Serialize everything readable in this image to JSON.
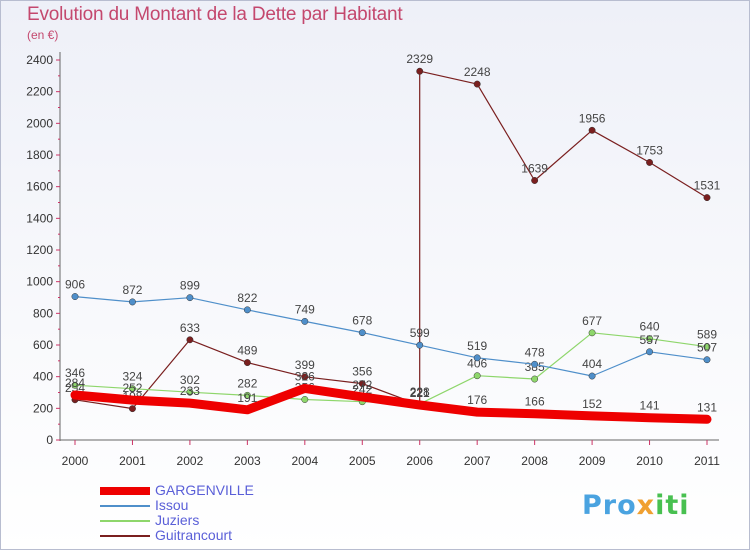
{
  "title": "Evolution du Montant de la Dette par Habitant",
  "subtitle": "(en €)",
  "brand": {
    "part1": "Pro",
    "part2": "x",
    "part3": "iti"
  },
  "chart_data": {
    "type": "line",
    "title": "Evolution du Montant de la Dette par Habitant",
    "subtitle": "(en €)",
    "categories": [
      "2000",
      "2001",
      "2002",
      "2003",
      "2004",
      "2005",
      "2006",
      "2007",
      "2008",
      "2009",
      "2010",
      "2011"
    ],
    "ylim": [
      0,
      2400
    ],
    "yticks": [
      0,
      200,
      400,
      600,
      800,
      1000,
      1200,
      1400,
      1600,
      1800,
      2000,
      2200,
      2400
    ],
    "grid": false,
    "legend_position": "bottom-left",
    "series": [
      {
        "name": "Guitrancourt",
        "color": "#7a1f1f",
        "width": 1.2,
        "values": [
          254,
          198,
          633,
          489,
          399,
          356,
          221,
          2248,
          1639,
          1956,
          1753,
          1531
        ],
        "labels": [
          "254",
          "198",
          "633",
          "489",
          "399",
          "356",
          "221",
          "2248",
          "1639",
          "1956",
          "1753",
          "1531"
        ],
        "extra_point": {
          "category": "2006",
          "value": 2329,
          "label": "2329"
        }
      },
      {
        "name": "Juziers",
        "color": "#8ed66b",
        "width": 1.2,
        "values": [
          346,
          324,
          302,
          282,
          256,
          242,
          228,
          406,
          385,
          677,
          640,
          589
        ],
        "labels": [
          "346",
          "324",
          "302",
          "282",
          "256",
          "242",
          "228",
          "406",
          "385",
          "677",
          "640",
          "589"
        ]
      },
      {
        "name": "Issou",
        "color": "#4f8fca",
        "width": 1.2,
        "values": [
          906,
          872,
          899,
          822,
          749,
          678,
          599,
          519,
          478,
          404,
          557,
          507
        ],
        "labels": [
          "906",
          "872",
          "899",
          "822",
          "749",
          "678",
          "599",
          "519",
          "478",
          "404",
          "557",
          "507"
        ]
      },
      {
        "name": "GARGENVILLE",
        "color": "#ee0000",
        "width": 9,
        "values": [
          284,
          252,
          233,
          191,
          326,
          272,
          221,
          176,
          166,
          152,
          141,
          131
        ],
        "labels": [
          "284",
          "252",
          "233",
          "191",
          "326",
          "272",
          "221",
          "176",
          "166",
          "152",
          "141",
          "131"
        ]
      }
    ],
    "legend": [
      {
        "name": "GARGENVILLE",
        "color": "#ee0000"
      },
      {
        "name": "Issou",
        "color": "#4f8fca"
      },
      {
        "name": "Juziers",
        "color": "#8ed66b"
      },
      {
        "name": "Guitrancourt",
        "color": "#7a1f1f"
      }
    ]
  }
}
